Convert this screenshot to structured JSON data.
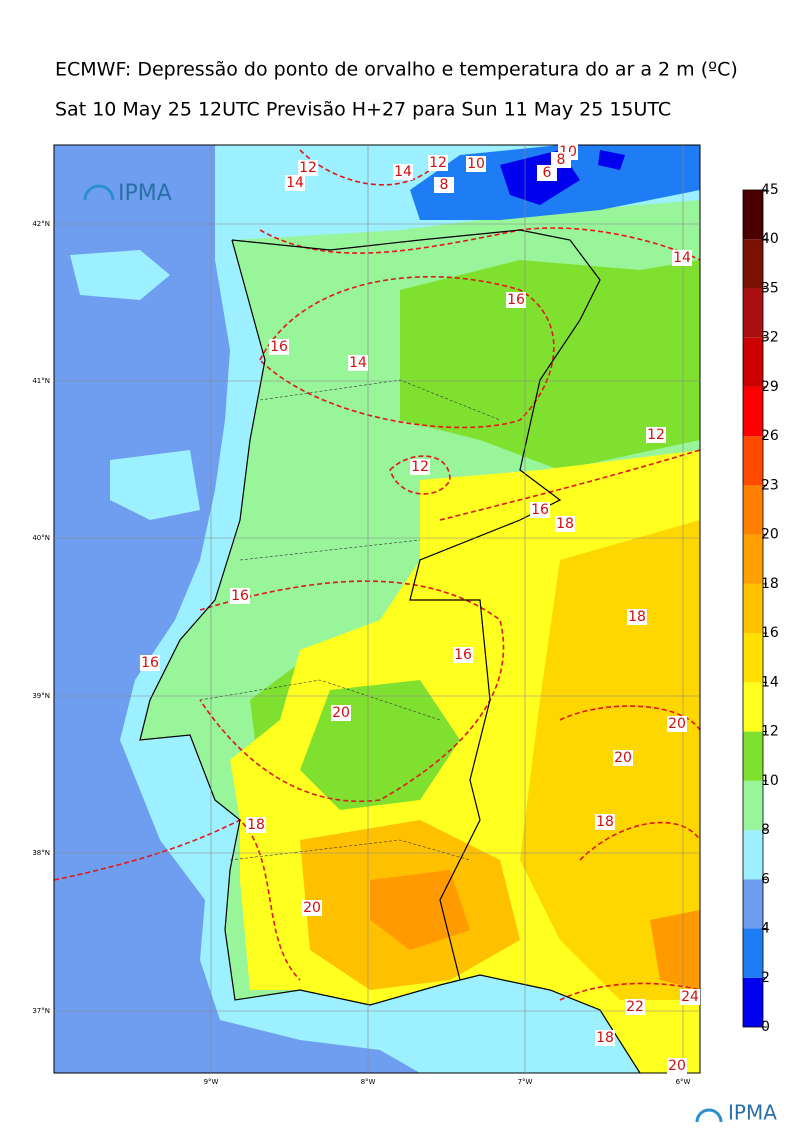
{
  "title": "ECMWF: Depressão do ponto de orvalho e temperatura do ar a 2 m (ºC)",
  "subtitle": "Sat 10 May 25 12UTC Previsão H+27 para Sun 11 May 25 15UTC",
  "logo_top": "IPMA",
  "logo_bottom": "IPMA",
  "lat_labels": [
    "42°N",
    "41°N",
    "40°N",
    "39°N",
    "38°N",
    "37°N"
  ],
  "lon_labels": [
    "9°W",
    "8°W",
    "7°W",
    "6°W"
  ],
  "colorbar": {
    "ticks": [
      0,
      2,
      4,
      6,
      8,
      10,
      12,
      14,
      16,
      18,
      20,
      23,
      26,
      29,
      32,
      35,
      40,
      45
    ],
    "colors": [
      "#0000ee",
      "#1e7cf5",
      "#6f9ef0",
      "#9cf0ff",
      "#98f59a",
      "#7fe030",
      "#ffff20",
      "#ffe000",
      "#ffc000",
      "#ffa000",
      "#ff7f00",
      "#ff4a00",
      "#ff0000",
      "#cc0000",
      "#aa1010",
      "#7a1000",
      "#4a0000"
    ]
  },
  "contour_labels": [
    12,
    14,
    14,
    12,
    10,
    8,
    10,
    6,
    8,
    14,
    16,
    16,
    14,
    12,
    12,
    16,
    18,
    16,
    18,
    16,
    16,
    20,
    20,
    20,
    18,
    18,
    20,
    22,
    24,
    18,
    20
  ]
}
